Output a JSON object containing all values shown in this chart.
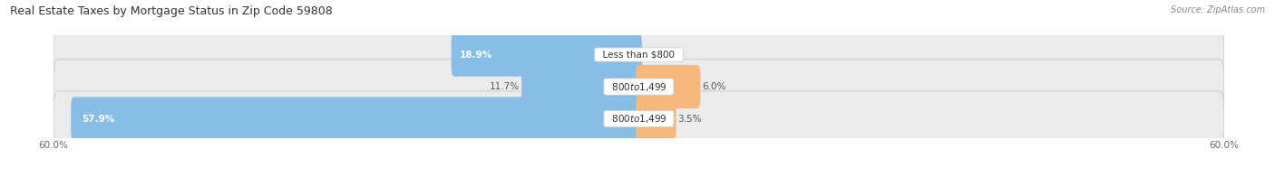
{
  "title": "Real Estate Taxes by Mortgage Status in Zip Code 59808",
  "source": "Source: ZipAtlas.com",
  "rows": [
    {
      "label": "Less than $800",
      "without_mortgage": 18.9,
      "with_mortgage": 0.0
    },
    {
      "label": "$800 to $1,499",
      "without_mortgage": 11.7,
      "with_mortgage": 6.0
    },
    {
      "label": "$800 to $1,499",
      "without_mortgage": 57.9,
      "with_mortgage": 3.5
    }
  ],
  "x_max": 60.0,
  "x_min": -60.0,
  "color_without": "#88bde6",
  "color_without_dark": "#5a9fd4",
  "color_with": "#f5b87a",
  "color_with_dark": "#e8963c",
  "bar_bg_color": "#ebebeb",
  "bar_border_color": "#d0d0d0",
  "title_fontsize": 9,
  "source_fontsize": 7,
  "label_fontsize": 7.5,
  "pct_fontsize": 7.5,
  "tick_fontsize": 7.5,
  "legend_fontsize": 7.5,
  "background_color": "#ffffff"
}
